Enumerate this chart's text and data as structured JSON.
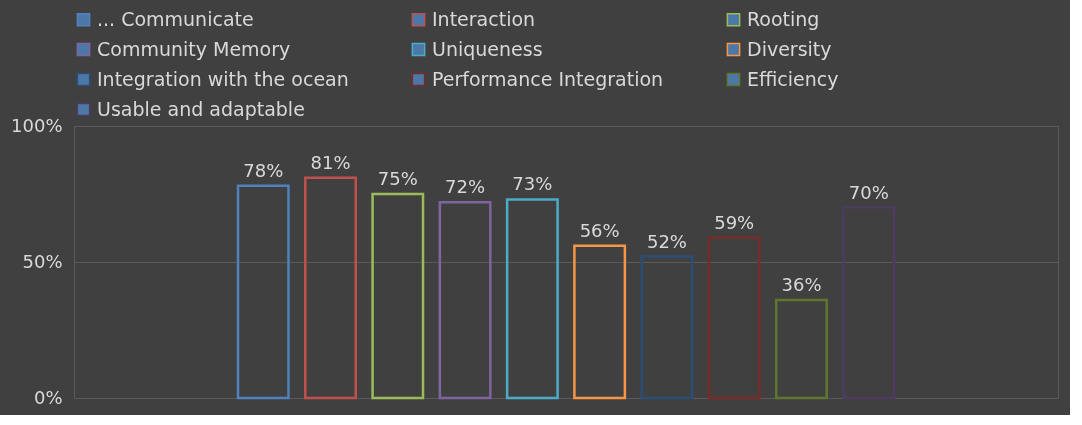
{
  "chart_data": {
    "type": "bar",
    "categories": [
      null
    ],
    "series": [
      {
        "name": "... Communicate",
        "color": "#4f81bd",
        "values": [
          78
        ],
        "value_labels": [
          "78%"
        ]
      },
      {
        "name": "Interaction",
        "color": "#c0504d",
        "values": [
          81
        ],
        "value_labels": [
          "81%"
        ]
      },
      {
        "name": "Rooting",
        "color": "#9bbb59",
        "values": [
          75
        ],
        "value_labels": [
          "75%"
        ]
      },
      {
        "name": "Community Memory",
        "color": "#8064a2",
        "values": [
          72
        ],
        "value_labels": [
          "72%"
        ]
      },
      {
        "name": "Uniqueness",
        "color": "#4bacc6",
        "values": [
          73
        ],
        "value_labels": [
          "73%"
        ]
      },
      {
        "name": "Diversity",
        "color": "#f79646",
        "values": [
          56
        ],
        "value_labels": [
          "56%"
        ]
      },
      {
        "name": "Integration with the ocean",
        "color": "#2c4d75",
        "values": [
          52
        ],
        "value_labels": [
          "52%"
        ]
      },
      {
        "name": "Performance Integration",
        "color": "#772c2a",
        "values": [
          59
        ],
        "value_labels": [
          "59%"
        ]
      },
      {
        "name": "Efficiency",
        "color": "#5f7530",
        "values": [
          36
        ],
        "value_labels": [
          "36%"
        ]
      },
      {
        "name": "Usable and adaptable",
        "color": "#4d3b62",
        "values": [
          70
        ],
        "value_labels": [
          "70%"
        ]
      }
    ],
    "ylim": [
      0,
      100
    ],
    "yticks": [
      {
        "value": 0,
        "label": "0%"
      },
      {
        "value": 50,
        "label": "50%"
      },
      {
        "value": 100,
        "label": "100%"
      }
    ],
    "grid": "y",
    "legend": "top",
    "tick_labels": "y"
  }
}
